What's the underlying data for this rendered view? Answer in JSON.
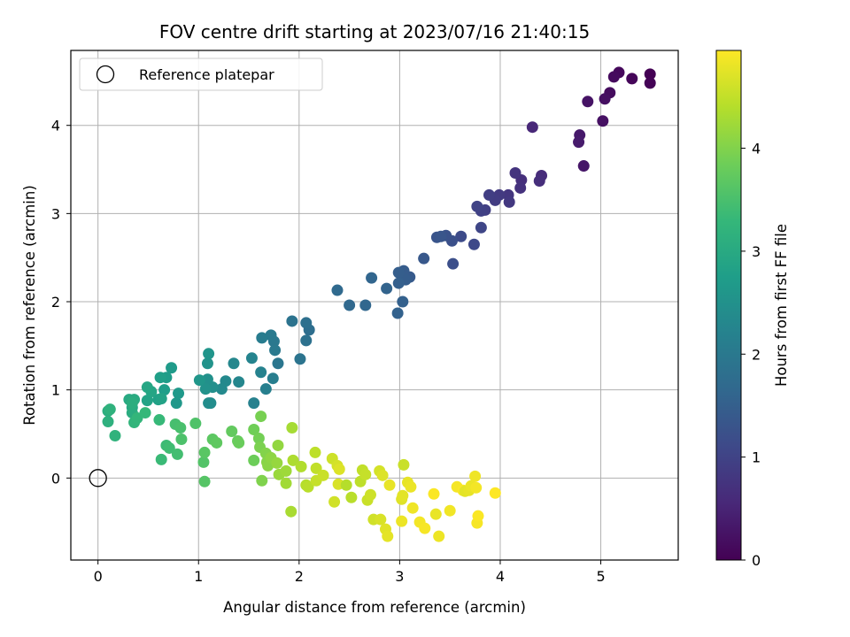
{
  "chart_data": {
    "type": "scatter",
    "title": "FOV centre drift starting at 2023/07/16 21:40:15",
    "xlabel": "Angular distance from reference (arcmin)",
    "ylabel": "Rotation from reference (arcmin)",
    "xlim": [
      -0.27,
      5.77
    ],
    "ylim": [
      -0.93,
      4.85
    ],
    "xticks": [
      0,
      1,
      2,
      3,
      4,
      5
    ],
    "yticks": [
      0,
      1,
      2,
      3,
      4
    ],
    "grid": true,
    "legend_position": "top-left",
    "colorbar": {
      "label": "Hours from first FF file",
      "range": [
        0,
        4.95
      ],
      "ticks": [
        0,
        1,
        2,
        3,
        4
      ],
      "colormap": "viridis"
    },
    "colormap_stops": [
      "#440154",
      "#482878",
      "#3e4989",
      "#31688e",
      "#26828e",
      "#1f9e89",
      "#35b779",
      "#6ece58",
      "#b5de2b",
      "#fde725"
    ],
    "series": [
      {
        "name": "Reference platepar",
        "marker": "open-circle",
        "points": [
          [
            0,
            0
          ]
        ]
      },
      {
        "marker": "filled-circle",
        "points": [
          [
            5.49,
            4.58,
            0.0
          ],
          [
            5.49,
            4.48,
            0.03
          ],
          [
            5.31,
            4.53,
            0.07
          ],
          [
            5.18,
            4.6,
            0.1
          ],
          [
            5.13,
            4.55,
            0.13
          ],
          [
            5.09,
            4.37,
            0.16
          ],
          [
            5.04,
            4.3,
            0.2
          ],
          [
            5.02,
            4.05,
            0.23
          ],
          [
            4.87,
            4.27,
            0.26
          ],
          [
            4.83,
            3.54,
            0.3
          ],
          [
            4.79,
            3.89,
            0.33
          ],
          [
            4.78,
            3.81,
            0.36
          ],
          [
            4.32,
            3.98,
            0.55
          ],
          [
            4.41,
            3.43,
            0.62
          ],
          [
            4.39,
            3.37,
            0.65
          ],
          [
            4.21,
            3.38,
            0.68
          ],
          [
            4.2,
            3.29,
            0.72
          ],
          [
            4.15,
            3.46,
            0.75
          ],
          [
            4.08,
            3.21,
            0.78
          ],
          [
            4.09,
            3.13,
            0.81
          ],
          [
            3.99,
            3.21,
            0.85
          ],
          [
            3.95,
            3.15,
            0.88
          ],
          [
            3.89,
            3.21,
            0.91
          ],
          [
            3.85,
            3.04,
            0.94
          ],
          [
            3.81,
            3.03,
            0.97
          ],
          [
            3.77,
            3.08,
            1.0
          ],
          [
            3.81,
            2.84,
            1.05
          ],
          [
            3.74,
            2.65,
            1.1
          ],
          [
            3.61,
            2.74,
            1.14
          ],
          [
            3.53,
            2.43,
            1.2
          ],
          [
            3.52,
            2.69,
            1.23
          ],
          [
            3.46,
            2.75,
            1.26
          ],
          [
            3.37,
            2.73,
            1.3
          ],
          [
            3.41,
            2.74,
            1.33
          ],
          [
            3.24,
            2.49,
            1.37
          ],
          [
            3.1,
            2.28,
            1.41
          ],
          [
            3.04,
            2.35,
            1.44
          ],
          [
            3.06,
            2.25,
            1.46
          ],
          [
            2.99,
            2.33,
            1.48
          ],
          [
            2.99,
            2.21,
            1.5
          ],
          [
            3.03,
            2.0,
            1.52
          ],
          [
            2.98,
            1.87,
            1.55
          ],
          [
            2.87,
            2.15,
            1.58
          ],
          [
            2.72,
            2.27,
            1.61
          ],
          [
            2.66,
            1.96,
            1.64
          ],
          [
            2.5,
            1.96,
            1.67
          ],
          [
            2.38,
            2.13,
            1.7
          ],
          [
            2.1,
            1.68,
            1.78
          ],
          [
            2.07,
            1.76,
            1.81
          ],
          [
            2.07,
            1.56,
            1.84
          ],
          [
            1.93,
            1.78,
            1.88
          ],
          [
            2.01,
            1.35,
            1.91
          ],
          [
            1.79,
            1.3,
            1.95
          ],
          [
            1.75,
            1.55,
            1.98
          ],
          [
            1.76,
            1.45,
            2.01
          ],
          [
            1.72,
            1.62,
            2.04
          ],
          [
            1.63,
            1.59,
            2.08
          ],
          [
            1.74,
            1.13,
            2.11
          ],
          [
            1.67,
            1.01,
            2.14
          ],
          [
            1.55,
            0.85,
            2.17
          ],
          [
            1.62,
            1.2,
            2.2
          ],
          [
            1.53,
            1.36,
            2.24
          ],
          [
            1.4,
            1.09,
            2.27
          ],
          [
            1.35,
            1.3,
            2.3
          ],
          [
            1.27,
            1.1,
            2.33
          ],
          [
            1.23,
            1.01,
            2.36
          ],
          [
            1.12,
            0.85,
            2.39
          ],
          [
            1.1,
            0.85,
            2.42
          ],
          [
            1.14,
            1.03,
            2.45
          ],
          [
            1.09,
            1.12,
            2.48
          ],
          [
            1.07,
            1.01,
            2.51
          ],
          [
            1.09,
            1.3,
            2.54
          ],
          [
            1.1,
            1.41,
            2.57
          ],
          [
            1.01,
            1.11,
            2.6
          ],
          [
            0.78,
            0.85,
            2.63
          ],
          [
            0.8,
            0.96,
            2.66
          ],
          [
            0.73,
            1.25,
            2.69
          ],
          [
            0.68,
            1.14,
            2.72
          ],
          [
            0.66,
            1.0,
            2.75
          ],
          [
            0.62,
            1.14,
            2.78
          ],
          [
            0.6,
            0.89,
            2.81
          ],
          [
            0.63,
            0.9,
            2.84
          ],
          [
            0.49,
            0.88,
            2.87
          ],
          [
            0.53,
            0.98,
            2.9
          ],
          [
            0.49,
            1.03,
            2.93
          ],
          [
            0.34,
            0.8,
            2.96
          ],
          [
            0.31,
            0.89,
            2.99
          ],
          [
            0.36,
            0.89,
            3.02
          ],
          [
            0.34,
            0.74,
            3.05
          ],
          [
            0.34,
            0.85,
            3.08
          ],
          [
            0.1,
            0.76,
            3.11
          ],
          [
            0.1,
            0.64,
            3.14
          ],
          [
            0.12,
            0.78,
            3.17
          ],
          [
            0.17,
            0.48,
            3.2
          ],
          [
            0.36,
            0.63,
            3.23
          ],
          [
            0.39,
            0.68,
            3.26
          ],
          [
            0.47,
            0.74,
            3.29
          ],
          [
            0.61,
            0.66,
            3.32
          ],
          [
            0.63,
            0.21,
            3.35
          ],
          [
            0.68,
            0.37,
            3.38
          ],
          [
            0.71,
            0.34,
            3.41
          ],
          [
            0.79,
            0.27,
            3.44
          ],
          [
            0.77,
            0.61,
            3.47
          ],
          [
            0.82,
            0.57,
            3.5
          ],
          [
            0.83,
            0.44,
            3.53
          ],
          [
            0.97,
            0.62,
            3.56
          ],
          [
            1.05,
            0.18,
            3.59
          ],
          [
            1.06,
            -0.04,
            3.62
          ],
          [
            1.06,
            0.29,
            3.65
          ],
          [
            1.14,
            0.44,
            3.68
          ],
          [
            1.18,
            0.4,
            3.71
          ],
          [
            1.33,
            0.53,
            3.74
          ],
          [
            1.39,
            0.42,
            3.77
          ],
          [
            1.4,
            0.4,
            3.8
          ],
          [
            1.55,
            0.2,
            3.83
          ],
          [
            1.55,
            0.55,
            3.86
          ],
          [
            1.6,
            0.45,
            3.89
          ],
          [
            1.62,
            0.7,
            3.92
          ],
          [
            1.61,
            0.35,
            3.95
          ],
          [
            1.63,
            -0.03,
            3.98
          ],
          [
            1.67,
            0.28,
            4.01
          ],
          [
            1.68,
            0.18,
            4.04
          ],
          [
            1.69,
            0.14,
            4.07
          ],
          [
            1.72,
            0.23,
            4.1
          ],
          [
            1.79,
            0.37,
            4.13
          ],
          [
            1.78,
            0.17,
            4.16
          ],
          [
            1.8,
            0.04,
            4.19
          ],
          [
            1.87,
            0.08,
            4.22
          ],
          [
            1.87,
            -0.06,
            4.25
          ],
          [
            1.93,
            0.57,
            4.28
          ],
          [
            1.92,
            -0.38,
            4.31
          ],
          [
            1.94,
            0.2,
            4.34
          ],
          [
            2.02,
            0.13,
            4.37
          ],
          [
            2.07,
            -0.08,
            4.4
          ],
          [
            2.09,
            -0.1,
            4.43
          ],
          [
            2.16,
            0.29,
            4.46
          ],
          [
            2.17,
            0.11,
            4.49
          ],
          [
            2.17,
            -0.03,
            4.52
          ],
          [
            2.24,
            0.03,
            4.55
          ],
          [
            2.33,
            0.22,
            4.58
          ],
          [
            2.35,
            -0.27,
            4.61
          ],
          [
            2.38,
            0.14,
            4.64
          ],
          [
            2.39,
            -0.07,
            4.67
          ],
          [
            2.4,
            0.1,
            4.7
          ],
          [
            2.47,
            -0.08,
            4.4
          ],
          [
            2.52,
            -0.22,
            4.43
          ],
          [
            2.61,
            -0.04,
            4.46
          ],
          [
            2.63,
            0.09,
            4.49
          ],
          [
            2.66,
            0.04,
            4.52
          ],
          [
            2.68,
            -0.25,
            4.55
          ],
          [
            2.71,
            -0.19,
            4.58
          ],
          [
            2.74,
            -0.47,
            4.61
          ],
          [
            2.8,
            0.08,
            4.64
          ],
          [
            2.81,
            -0.47,
            4.67
          ],
          [
            2.83,
            0.03,
            4.7
          ],
          [
            2.86,
            -0.58,
            4.73
          ],
          [
            2.88,
            -0.66,
            4.76
          ],
          [
            2.9,
            -0.08,
            4.79
          ],
          [
            3.02,
            -0.49,
            4.82
          ],
          [
            3.02,
            -0.24,
            4.72
          ],
          [
            3.03,
            -0.2,
            4.75
          ],
          [
            3.04,
            0.15,
            4.55
          ],
          [
            3.08,
            -0.05,
            4.78
          ],
          [
            3.11,
            -0.1,
            4.81
          ],
          [
            3.13,
            -0.34,
            4.84
          ],
          [
            3.2,
            -0.5,
            4.87
          ],
          [
            3.25,
            -0.57,
            4.9
          ],
          [
            3.34,
            -0.18,
            4.93
          ],
          [
            3.36,
            -0.41,
            4.8
          ],
          [
            3.39,
            -0.66,
            4.83
          ],
          [
            3.5,
            -0.37,
            4.86
          ],
          [
            3.57,
            -0.1,
            4.89
          ],
          [
            3.63,
            -0.14,
            4.92
          ],
          [
            3.65,
            -0.15,
            4.75
          ],
          [
            3.69,
            -0.14,
            4.78
          ],
          [
            3.71,
            -0.09,
            4.81
          ],
          [
            3.75,
            0.02,
            4.84
          ],
          [
            3.76,
            -0.11,
            4.87
          ],
          [
            3.77,
            -0.51,
            4.9
          ],
          [
            3.78,
            -0.43,
            4.93
          ],
          [
            3.95,
            -0.17,
            4.95
          ]
        ]
      }
    ]
  }
}
